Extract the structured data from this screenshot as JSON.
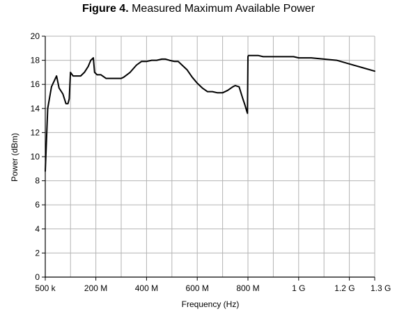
{
  "figure": {
    "number": "Figure 4.",
    "caption": "Measured Maximum Available Power"
  },
  "colors": {
    "line": "#000000",
    "grid": "#b3b3b3",
    "axis": "#000000"
  },
  "chart_data": {
    "type": "line",
    "title": "Figure 4. Measured Maximum Available Power",
    "xlabel": "Frequency (Hz)",
    "ylabel": "Power (dBm)",
    "xlim_mhz": [
      0.5,
      1300
    ],
    "ylim": [
      0,
      20
    ],
    "grid": true,
    "legend": "none",
    "x_ticks": [
      {
        "value": 0.5,
        "label": "500 k"
      },
      {
        "value": 200,
        "label": "200 M"
      },
      {
        "value": 400,
        "label": "400 M"
      },
      {
        "value": 600,
        "label": "600 M"
      },
      {
        "value": 800,
        "label": "800 M"
      },
      {
        "value": 1000,
        "label": "1 G"
      },
      {
        "value": 1200,
        "label": "1.2 G"
      },
      {
        "value": 1300,
        "label": "1.3 G"
      }
    ],
    "x_grid": [
      0.5,
      100,
      200,
      300,
      400,
      500,
      600,
      700,
      800,
      900,
      1000,
      1100,
      1200,
      1300
    ],
    "y_ticks": [
      0,
      2,
      4,
      6,
      8,
      10,
      12,
      14,
      16,
      18,
      20
    ],
    "series": [
      {
        "x": [
          0.5,
          10,
          25,
          45,
          55,
          70,
          82,
          90,
          95,
          100,
          110,
          125,
          140,
          155,
          170,
          180,
          190,
          195,
          205,
          220,
          240,
          260,
          280,
          300,
          310,
          335,
          360,
          380,
          400,
          420,
          440,
          460,
          475,
          490,
          510,
          525,
          540,
          560,
          580,
          600,
          620,
          640,
          660,
          680,
          700,
          720,
          740,
          750,
          765,
          780,
          788,
          795,
          798,
          800,
          802,
          805,
          820,
          840,
          860,
          900,
          950,
          980,
          1000,
          1050,
          1100,
          1150,
          1200,
          1250,
          1300
        ],
        "y": [
          8.8,
          14,
          15.8,
          16.7,
          15.7,
          15.2,
          14.4,
          14.4,
          14.8,
          17.0,
          16.7,
          16.7,
          16.7,
          17.0,
          17.5,
          18.0,
          18.2,
          17.0,
          16.8,
          16.8,
          16.5,
          16.5,
          16.5,
          16.5,
          16.6,
          17.0,
          17.6,
          17.9,
          17.9,
          18.0,
          18.0,
          18.1,
          18.1,
          18.0,
          17.9,
          17.9,
          17.6,
          17.2,
          16.6,
          16.1,
          15.7,
          15.4,
          15.4,
          15.3,
          15.3,
          15.5,
          15.8,
          15.9,
          15.8,
          14.8,
          14.3,
          13.8,
          13.6,
          18.3,
          18.4,
          18.4,
          18.4,
          18.4,
          18.3,
          18.3,
          18.3,
          18.3,
          18.2,
          18.2,
          18.1,
          18.0,
          17.7,
          17.4,
          17.1
        ]
      }
    ]
  }
}
